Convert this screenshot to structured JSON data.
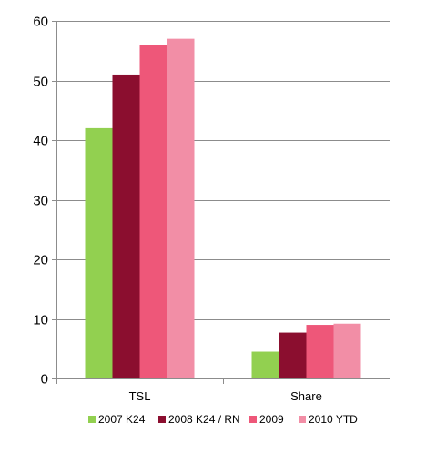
{
  "chart_data": {
    "type": "bar",
    "title": "",
    "xlabel": "",
    "ylabel": "",
    "ylim": [
      0,
      60
    ],
    "yticks": [
      0,
      10,
      20,
      30,
      40,
      50,
      60
    ],
    "grid": true,
    "legend_position": "bottom",
    "categories": [
      "TSL",
      "Share"
    ],
    "series": [
      {
        "name": "2007 K24",
        "color": "#92d050",
        "values": [
          42,
          4.5
        ]
      },
      {
        "name": "2008 K24 / RN",
        "color": "#8b0e2f",
        "values": [
          51,
          7.7
        ]
      },
      {
        "name": "2009",
        "color": "#ee5779",
        "values": [
          56,
          9.0
        ]
      },
      {
        "name": "2010 YTD",
        "color": "#f28ea6",
        "values": [
          57,
          9.2
        ]
      }
    ]
  }
}
